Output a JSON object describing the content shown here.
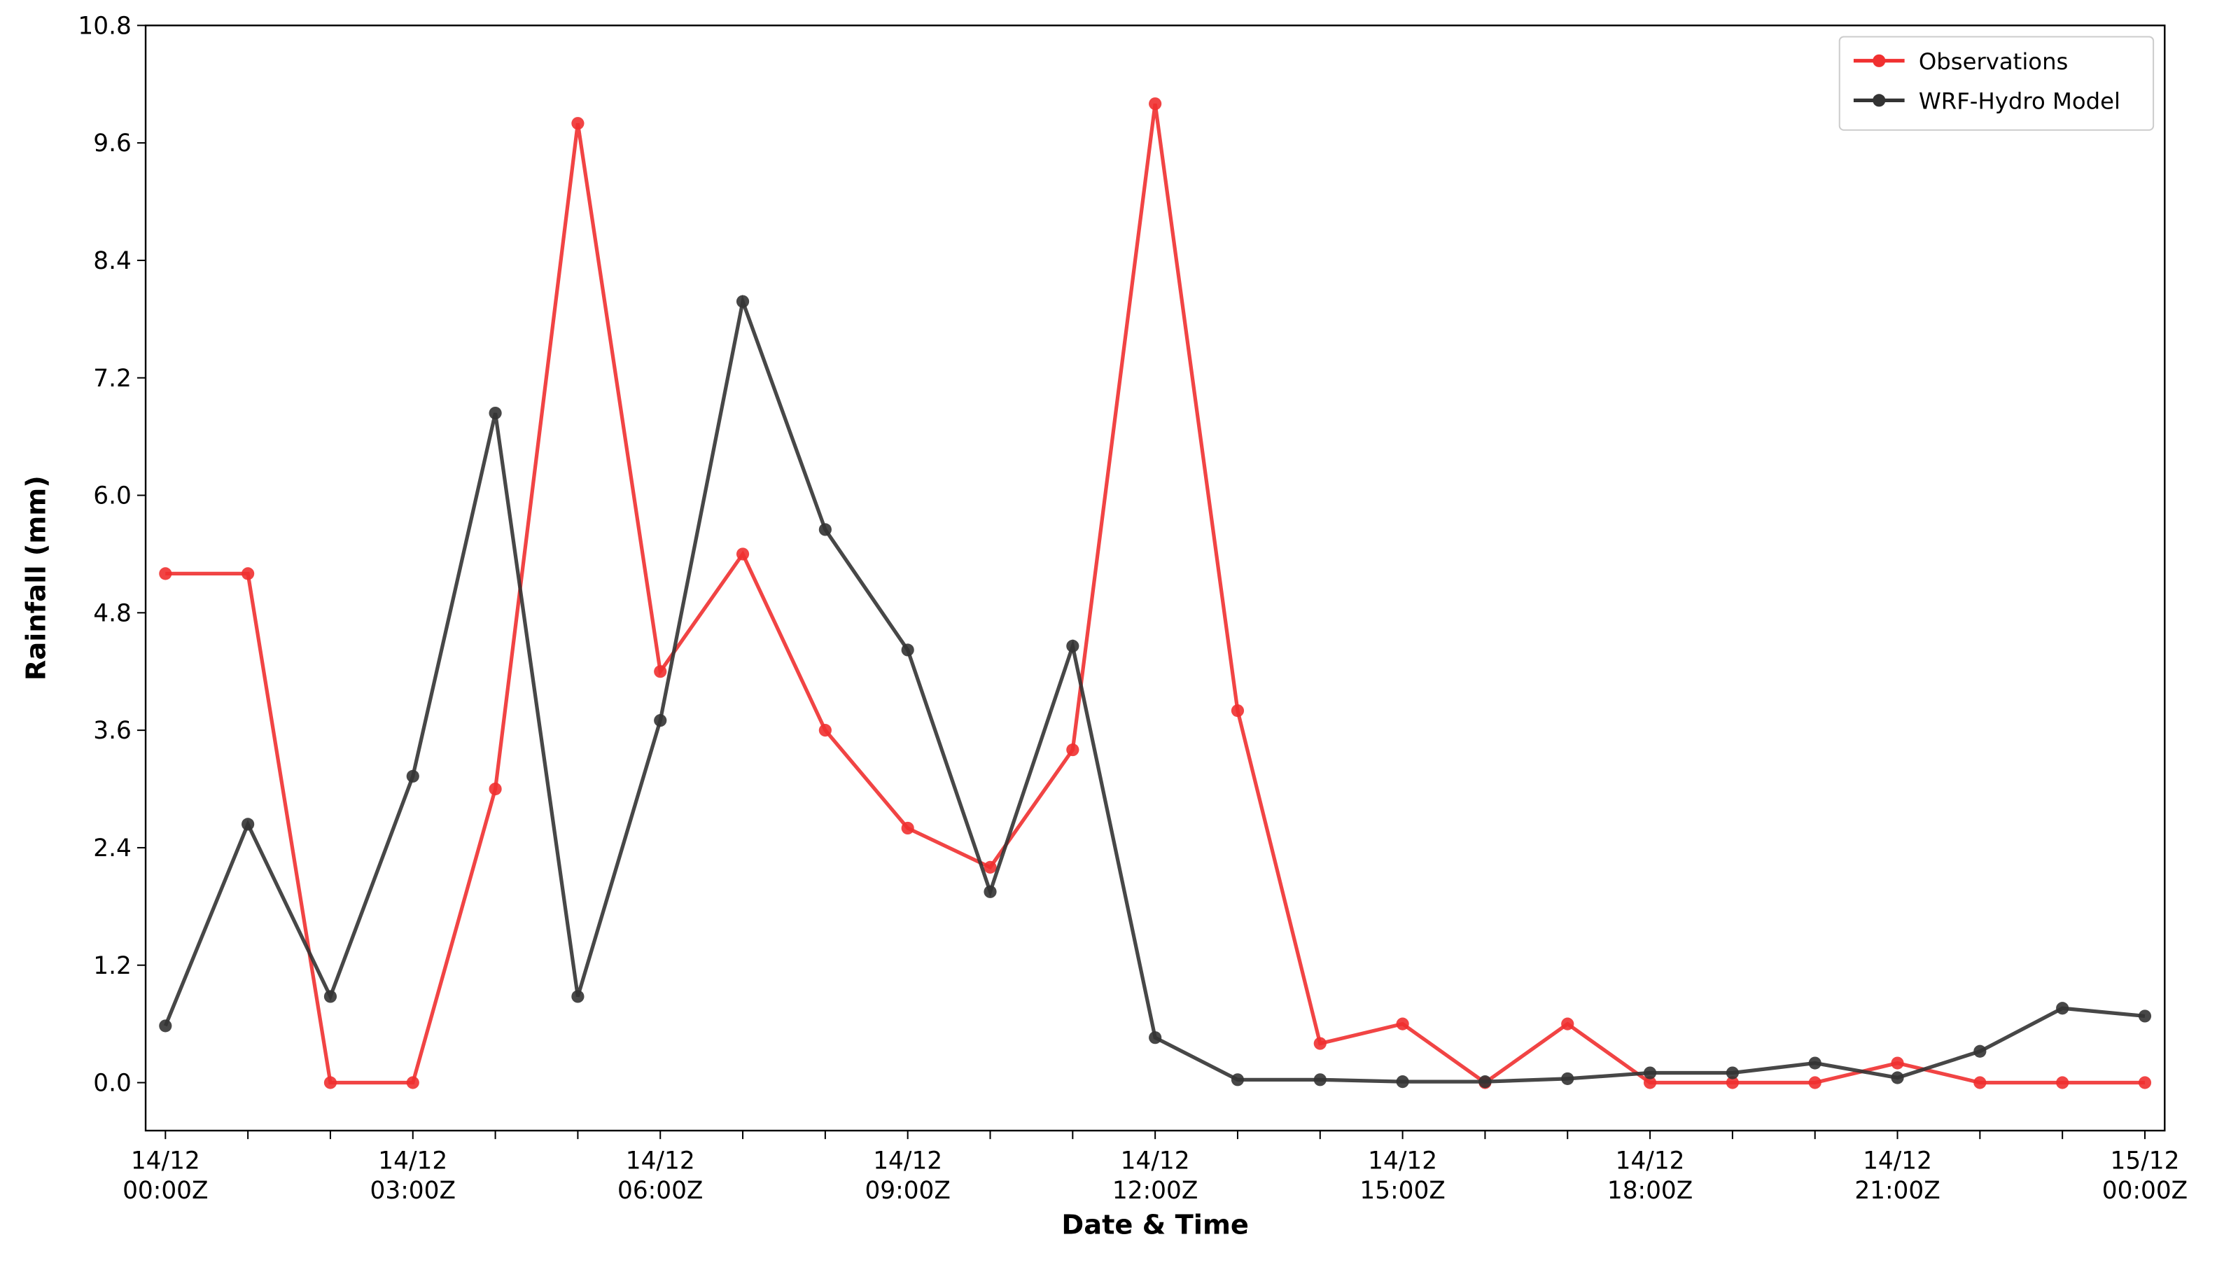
{
  "chart_data": {
    "type": "line",
    "xlabel": "Date & Time",
    "ylabel": "Rainfall (mm)",
    "categories": [
      "14/12 00:00Z",
      null,
      null,
      "14/12 03:00Z",
      null,
      null,
      "14/12 06:00Z",
      null,
      null,
      "14/12 09:00Z",
      null,
      null,
      "14/12 12:00Z",
      null,
      null,
      "14/12 15:00Z",
      null,
      null,
      "14/12 18:00Z",
      null,
      null,
      "14/12 21:00Z",
      null,
      null,
      "15/12 00:00Z"
    ],
    "series": [
      {
        "name": "Observations",
        "color": "#f03030",
        "values": [
          5.2,
          5.2,
          0,
          0,
          3.0,
          9.8,
          4.2,
          5.4,
          3.6,
          2.6,
          2.2,
          3.4,
          10.0,
          3.8,
          0.4,
          0.6,
          0,
          0.6,
          0,
          0,
          0,
          0.2,
          0,
          0,
          0
        ]
      },
      {
        "name": "WRF-Hydro Model",
        "color": "#333333",
        "values": [
          0.58,
          2.64,
          0.88,
          3.13,
          6.84,
          0.88,
          3.7,
          7.98,
          5.65,
          4.42,
          1.95,
          4.46,
          0.46,
          0.03,
          0.03,
          0.01,
          0.01,
          0.04,
          0.1,
          0.1,
          0.2,
          0.05,
          0.32,
          0.76,
          0.68
        ]
      }
    ],
    "ylim": [
      -0.49,
      10.8
    ],
    "yticks": [
      {
        "value": 0,
        "label": "0.0"
      },
      1.2,
      2.4,
      3.6,
      4.8,
      {
        "value": 6,
        "label": "6.0"
      },
      7.2,
      8.4,
      9.6,
      10.8
    ],
    "grid": false,
    "legend": "upper right"
  }
}
